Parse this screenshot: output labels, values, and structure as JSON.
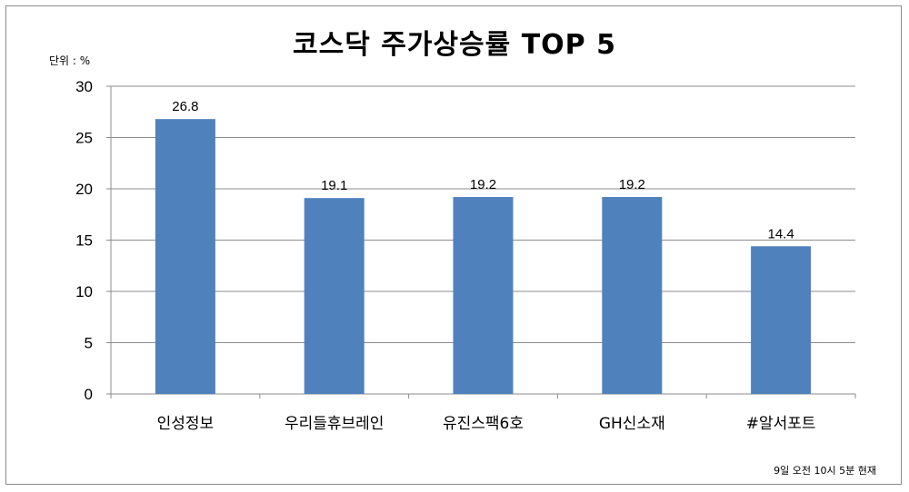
{
  "chart_data": {
    "type": "bar",
    "title": "코스닥 주가상승률  TOP 5",
    "unit_label": "단위 : %",
    "footnote": "9일 오전 10시 5분 현재",
    "categories": [
      "인성정보",
      "우리들휴브레인",
      "유진스팩6호",
      "GH신소재",
      "#알서포트"
    ],
    "values": [
      26.8,
      19.1,
      19.2,
      19.2,
      14.4
    ],
    "data_labels": [
      "26.8",
      "19.1",
      "19.2",
      "19.2",
      "14.4"
    ],
    "ylim": [
      0,
      30
    ],
    "yticks": [
      0,
      5,
      10,
      15,
      20,
      25,
      30
    ],
    "grid": true,
    "bar_color": "#4f81bd",
    "grid_color": "#8c8c8c"
  }
}
